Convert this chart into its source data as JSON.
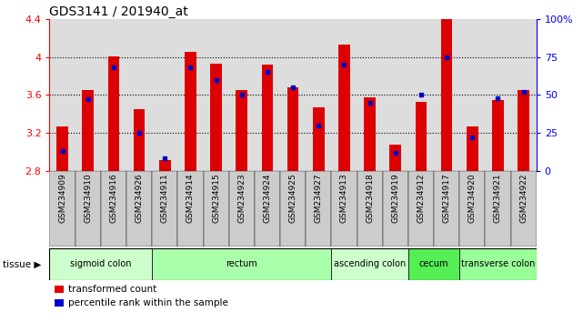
{
  "title": "GDS3141 / 201940_at",
  "samples": [
    "GSM234909",
    "GSM234910",
    "GSM234916",
    "GSM234926",
    "GSM234911",
    "GSM234914",
    "GSM234915",
    "GSM234923",
    "GSM234924",
    "GSM234925",
    "GSM234927",
    "GSM234913",
    "GSM234918",
    "GSM234919",
    "GSM234912",
    "GSM234917",
    "GSM234920",
    "GSM234921",
    "GSM234922"
  ],
  "transformed_count": [
    3.27,
    3.65,
    4.01,
    3.45,
    2.91,
    4.06,
    3.93,
    3.65,
    3.92,
    3.68,
    3.47,
    4.13,
    3.58,
    3.08,
    3.53,
    4.4,
    3.27,
    3.55,
    3.65
  ],
  "percentile_rank": [
    13,
    47,
    68,
    25,
    8,
    68,
    60,
    50,
    65,
    55,
    30,
    70,
    45,
    12,
    50,
    75,
    22,
    48,
    52
  ],
  "tissue_groups": [
    {
      "label": "sigmoid colon",
      "start": 0,
      "end": 3,
      "color": "#ccffcc"
    },
    {
      "label": "rectum",
      "start": 4,
      "end": 10,
      "color": "#aaffaa"
    },
    {
      "label": "ascending colon",
      "start": 11,
      "end": 13,
      "color": "#ccffcc"
    },
    {
      "label": "cecum",
      "start": 14,
      "end": 15,
      "color": "#55ee55"
    },
    {
      "label": "transverse colon",
      "start": 16,
      "end": 18,
      "color": "#99ff99"
    }
  ],
  "ylim_left": [
    2.8,
    4.4
  ],
  "ylim_right": [
    0,
    100
  ],
  "yticks_left": [
    2.8,
    3.2,
    3.6,
    4.0,
    4.4
  ],
  "ytick_labels_left": [
    "2.8",
    "3.2",
    "3.6",
    "4",
    "4.4"
  ],
  "yticks_right": [
    0,
    25,
    50,
    75,
    100
  ],
  "ytick_labels_right": [
    "0",
    "25",
    "50",
    "75",
    "100%"
  ],
  "bar_color": "#dd0000",
  "percentile_color": "#0000cc",
  "plot_bg_color": "#dddddd",
  "xtick_bg_color": "#cccccc",
  "fig_bg": "#ffffff",
  "grid_lines": [
    3.2,
    3.6,
    4.0
  ]
}
